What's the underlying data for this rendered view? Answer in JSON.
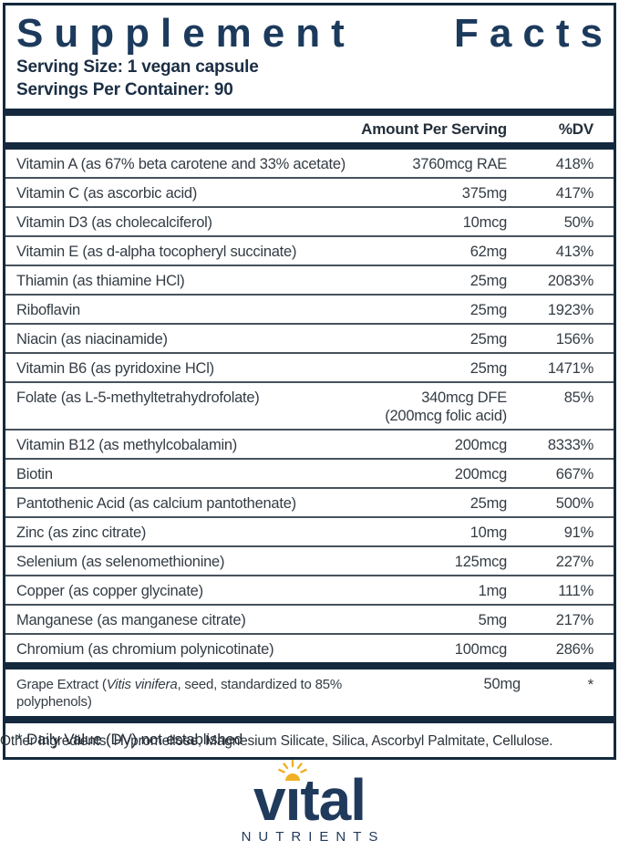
{
  "panel": {
    "title": "Supplement Facts",
    "title_words": [
      "Supplement",
      "Facts"
    ],
    "serving_size": "Serving Size: 1 vegan capsule",
    "servings_per_container": "Servings Per Container: 90",
    "columns": {
      "amount": "Amount Per Serving",
      "dv": "%DV"
    },
    "rows": [
      {
        "name": "Vitamin A (as 67% beta carotene and 33% acetate)",
        "amount": "3760mcg RAE",
        "dv": "418%"
      },
      {
        "name": "Vitamin C (as ascorbic acid)",
        "amount": "375mg",
        "dv": "417%"
      },
      {
        "name": "Vitamin D3 (as cholecalciferol)",
        "amount": "10mcg",
        "dv": "50%"
      },
      {
        "name": "Vitamin E (as d-alpha tocopheryl succinate)",
        "amount": "62mg",
        "dv": "413%"
      },
      {
        "name": "Thiamin (as thiamine HCl)",
        "amount": "25mg",
        "dv": "2083%"
      },
      {
        "name": "Riboflavin",
        "amount": "25mg",
        "dv": "1923%"
      },
      {
        "name": "Niacin (as niacinamide)",
        "amount": "25mg",
        "dv": "156%"
      },
      {
        "name": "Vitamin B6 (as pyridoxine HCl)",
        "amount": "25mg",
        "dv": "1471%"
      },
      {
        "name": "Folate (as L-5-methyltetrahydrofolate)",
        "amount": "340mcg DFE",
        "amount_note": "(200mcg folic acid)",
        "dv": "85%"
      },
      {
        "name": "Vitamin B12 (as methylcobalamin)",
        "amount": "200mcg",
        "dv": "8333%"
      },
      {
        "name": "Biotin",
        "amount": "200mcg",
        "dv": "667%"
      },
      {
        "name": "Pantothenic Acid (as calcium pantothenate)",
        "amount": "25mg",
        "dv": "500%"
      },
      {
        "name": "Zinc (as zinc citrate)",
        "amount": "10mg",
        "dv": "91%"
      },
      {
        "name": "Selenium (as selenomethionine)",
        "amount": "125mcg",
        "dv": "227%"
      },
      {
        "name": "Copper (as copper glycinate)",
        "amount": "1mg",
        "dv": "111%"
      },
      {
        "name": "Manganese (as manganese citrate)",
        "amount": "5mg",
        "dv": "217%"
      },
      {
        "name": "Chromium (as chromium polynicotinate)",
        "amount": "100mcg",
        "dv": "286%"
      }
    ],
    "grape_row": {
      "name_prefix": "Grape Extract (",
      "name_italic": "Vitis vinifera",
      "name_suffix": ", seed, standardized to 85% polyphenols)",
      "amount": "50mg",
      "dv": "*"
    },
    "footnote": "* Daily Value (DV) not established"
  },
  "other_ingredients": "Other Ingredients: Hypromellose, Magnesium Silicate, Silica, Ascorbyl Palmitate, Cellulose.",
  "logo": {
    "brand": "vital",
    "brand_part1": "v",
    "brand_dotless_i": "ı",
    "brand_part2": "tal",
    "subbrand": "NUTRIENTS",
    "sun_icon": "sun-icon"
  },
  "colors": {
    "navy_bar": "#14293e",
    "title_navy": "#1c3a5c",
    "row_text": "#343c44",
    "thin_line": "#47525d",
    "logo_navy": "#203a5c",
    "sun_gold": "#f0b224"
  }
}
